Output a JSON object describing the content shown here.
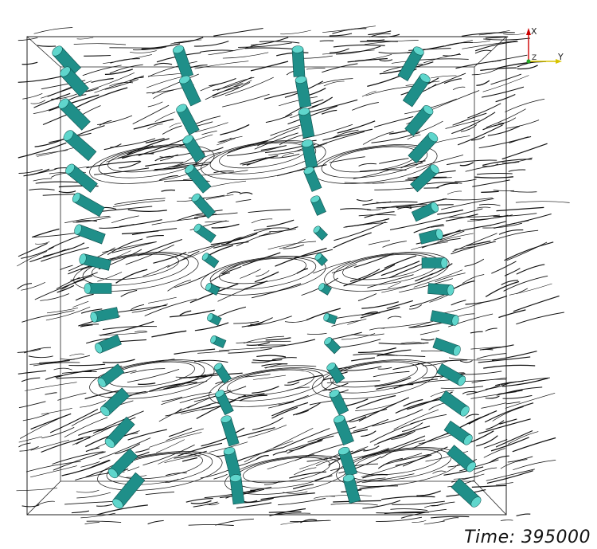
{
  "time_label": "Time: 395000",
  "axes": {
    "x_label": "X",
    "y_label": "Y",
    "z_label": "Z",
    "x_color": "#cc0000",
    "y_color": "#d8c400",
    "z_color": "#22aa22"
  },
  "colors": {
    "background": "#ffffff",
    "streamline": "#111111",
    "box": "#222222",
    "cylinder_fill": "#1f8f89",
    "cylinder_cap": "#5fd6cc",
    "cylinder_shadow": "#0d4f4b"
  }
}
